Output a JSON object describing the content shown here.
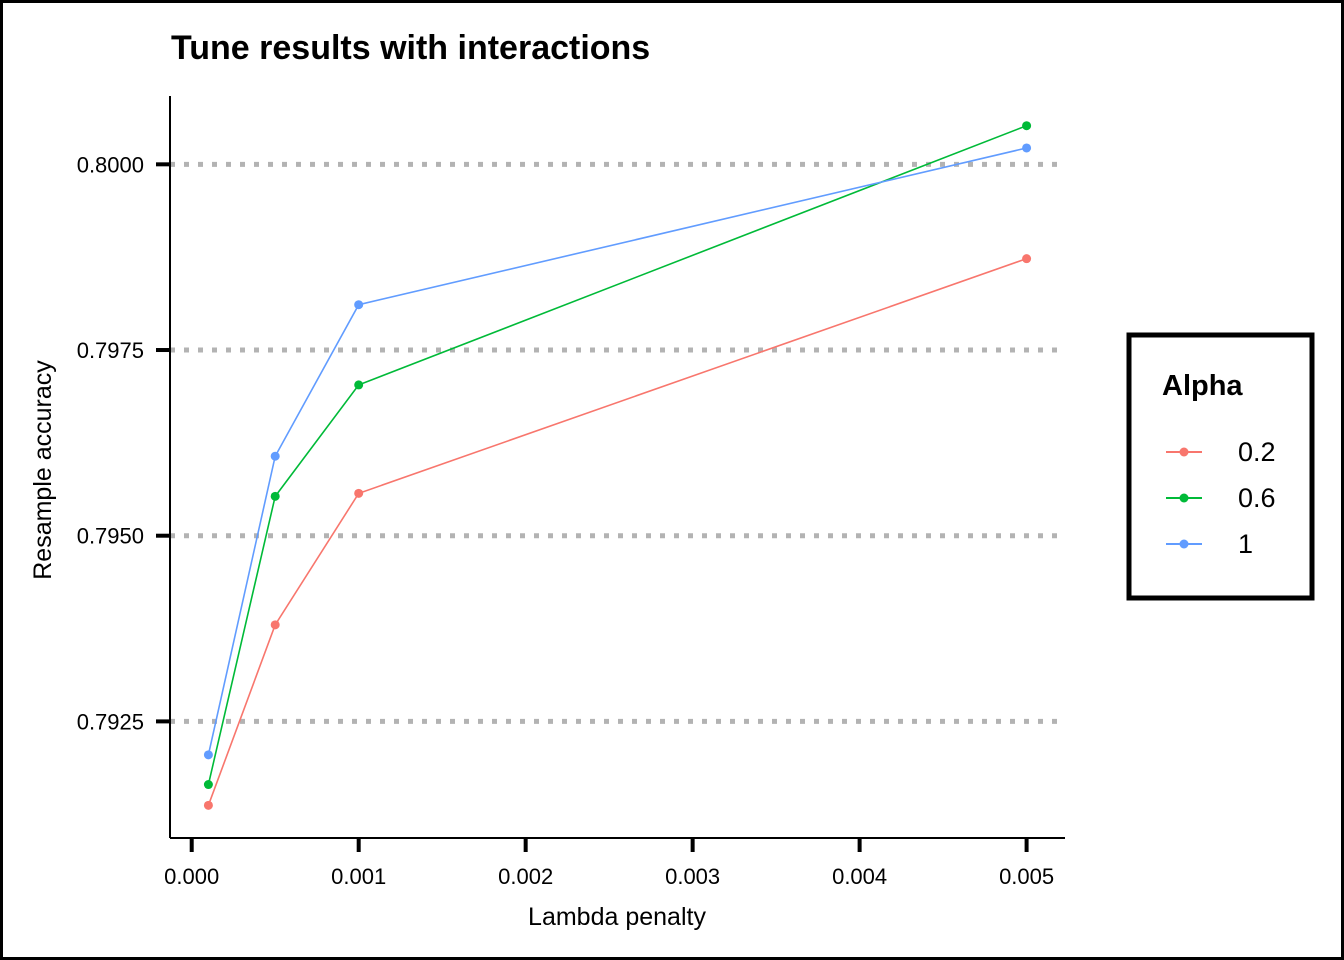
{
  "chart_data": {
    "type": "line",
    "title": "Tune results with interactions",
    "xlabel": "Lambda penalty",
    "ylabel": "Resample accuracy",
    "xlim": [
      -0.00013,
      0.00523
    ],
    "ylim": [
      0.79093,
      0.80092
    ],
    "xticks": [
      0.0,
      0.001,
      0.002,
      0.003,
      0.004,
      0.005
    ],
    "xtick_labels": [
      "0.000",
      "0.001",
      "0.002",
      "0.003",
      "0.004",
      "0.005"
    ],
    "yticks": [
      0.7925,
      0.795,
      0.7975,
      0.8
    ],
    "ytick_labels": [
      "0.7925",
      "0.7950",
      "0.7975",
      "0.8000"
    ],
    "grid": "horizontal dotted at y ticks",
    "x": [
      0.0001,
      0.0005,
      0.001,
      0.005
    ],
    "legend": {
      "title": "Alpha",
      "placement": "right"
    },
    "series": [
      {
        "name": "0.2",
        "color": "#F8766D",
        "values": [
          0.79137,
          0.7938,
          0.79557,
          0.79873
        ]
      },
      {
        "name": "0.6",
        "color": "#00BA38",
        "values": [
          0.79165,
          0.79553,
          0.79703,
          0.80052
        ]
      },
      {
        "name": "1",
        "color": "#619CFF",
        "values": [
          0.79205,
          0.79607,
          0.79811,
          0.80022
        ]
      }
    ]
  }
}
